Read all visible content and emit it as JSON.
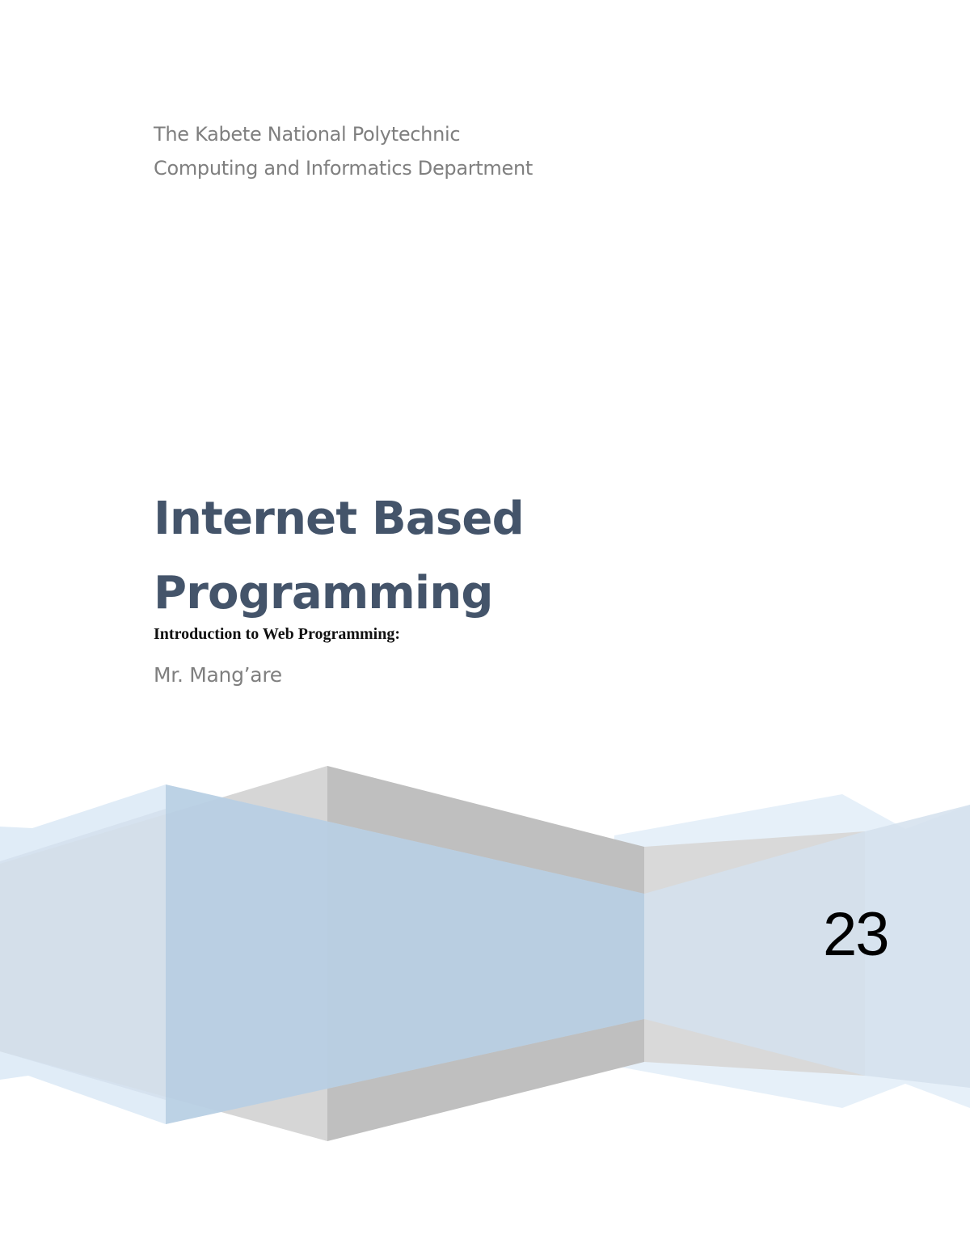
{
  "header": {
    "institution": "The Kabete National Polytechnic",
    "department": "Computing and Informatics Department"
  },
  "cover": {
    "title_line1": "Internet Based",
    "title_line2": "Programming",
    "subtitle": "Introduction to Web Programming:",
    "author": "Mr. Mang’are",
    "year": "23"
  },
  "colors": {
    "title": "#44546a",
    "header_text": "#7f7f7f",
    "accent_blue": "#a9c4de",
    "accent_gray": "#bfbfbf"
  }
}
